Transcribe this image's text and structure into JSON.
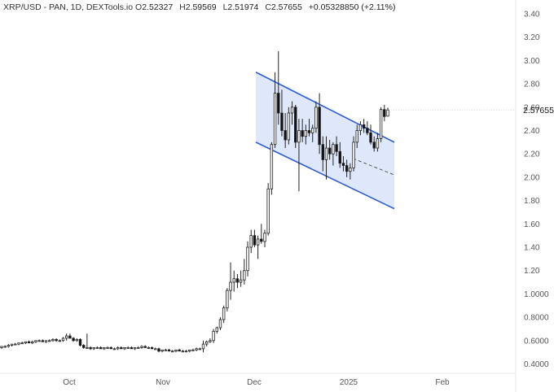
{
  "legend": {
    "title": "XRP/USD - PAN, 1D, DEXTools.io",
    "open_label": "O",
    "open": "2.52327",
    "high_label": "H",
    "high": "2.59569",
    "low_label": "L",
    "low": "2.51974",
    "close_label": "C",
    "close": "2.57655",
    "change": "+0.05328850 (+2.11%)"
  },
  "last_price_label": "2.57655",
  "colors": {
    "channel_fill": "#dbe6fb",
    "channel_line": "#2f5fd0",
    "candle_body_up": "#ffffff",
    "candle_body_down": "#111111",
    "wick": "#222222",
    "axis_text": "#555555",
    "grid": "#f0f0f0"
  },
  "chart_data": {
    "type": "candlestick",
    "title": "XRP/USD - PAN, 1D, DEXTools.io",
    "y_axis": {
      "ticks": [
        "3.40",
        "3.20",
        "3.00",
        "2.80",
        "2.60",
        "2.40",
        "2.20",
        "2.00",
        "1.80",
        "1.60",
        "1.40",
        "1.20",
        "1.0000",
        "0.8000",
        "0.6000",
        "0.4000"
      ],
      "range": [
        0.38,
        3.44
      ]
    },
    "x_axis": {
      "tick_labels": [
        "Oct",
        "Nov",
        "Dec",
        "2025",
        "Feb"
      ]
    },
    "grid": false,
    "channel": {
      "upper_start": [
        "2024-12-02",
        2.9
      ],
      "upper_end": [
        "2025-01-18",
        2.3
      ],
      "lower_start": [
        "2024-12-02",
        2.3
      ],
      "lower_end": [
        "2025-01-18",
        1.73
      ],
      "midline_start": [
        "2025-01-04",
        2.16
      ],
      "midline_end": [
        "2025-01-18",
        2.02
      ]
    },
    "candles": [
      [
        0.54,
        0.55,
        0.53,
        0.55
      ],
      [
        0.55,
        0.56,
        0.54,
        0.55
      ],
      [
        0.55,
        0.57,
        0.54,
        0.56
      ],
      [
        0.56,
        0.57,
        0.55,
        0.57
      ],
      [
        0.57,
        0.58,
        0.56,
        0.57
      ],
      [
        0.57,
        0.58,
        0.56,
        0.58
      ],
      [
        0.58,
        0.59,
        0.57,
        0.58
      ],
      [
        0.58,
        0.59,
        0.57,
        0.59
      ],
      [
        0.59,
        0.6,
        0.58,
        0.58
      ],
      [
        0.58,
        0.6,
        0.57,
        0.59
      ],
      [
        0.59,
        0.6,
        0.58,
        0.6
      ],
      [
        0.6,
        0.61,
        0.59,
        0.6
      ],
      [
        0.6,
        0.61,
        0.59,
        0.59
      ],
      [
        0.59,
        0.6,
        0.58,
        0.6
      ],
      [
        0.6,
        0.61,
        0.59,
        0.6
      ],
      [
        0.6,
        0.62,
        0.59,
        0.61
      ],
      [
        0.61,
        0.62,
        0.59,
        0.6
      ],
      [
        0.6,
        0.61,
        0.59,
        0.6
      ],
      [
        0.6,
        0.63,
        0.59,
        0.62
      ],
      [
        0.62,
        0.66,
        0.6,
        0.64
      ],
      [
        0.64,
        0.66,
        0.62,
        0.62
      ],
      [
        0.62,
        0.63,
        0.59,
        0.6
      ],
      [
        0.6,
        0.62,
        0.59,
        0.61
      ],
      [
        0.61,
        0.62,
        0.55,
        0.56
      ],
      [
        0.56,
        0.57,
        0.53,
        0.54
      ],
      [
        0.54,
        0.66,
        0.53,
        0.54
      ],
      [
        0.54,
        0.55,
        0.52,
        0.53
      ],
      [
        0.53,
        0.54,
        0.52,
        0.54
      ],
      [
        0.54,
        0.55,
        0.53,
        0.54
      ],
      [
        0.54,
        0.55,
        0.53,
        0.53
      ],
      [
        0.53,
        0.54,
        0.52,
        0.54
      ],
      [
        0.54,
        0.55,
        0.53,
        0.54
      ],
      [
        0.54,
        0.55,
        0.53,
        0.53
      ],
      [
        0.53,
        0.54,
        0.52,
        0.53
      ],
      [
        0.53,
        0.55,
        0.52,
        0.54
      ],
      [
        0.54,
        0.55,
        0.53,
        0.53
      ],
      [
        0.53,
        0.54,
        0.52,
        0.54
      ],
      [
        0.54,
        0.55,
        0.53,
        0.54
      ],
      [
        0.54,
        0.55,
        0.53,
        0.53
      ],
      [
        0.53,
        0.54,
        0.52,
        0.54
      ],
      [
        0.54,
        0.55,
        0.53,
        0.54
      ],
      [
        0.54,
        0.56,
        0.53,
        0.55
      ],
      [
        0.55,
        0.56,
        0.54,
        0.54
      ],
      [
        0.54,
        0.55,
        0.53,
        0.54
      ],
      [
        0.54,
        0.55,
        0.53,
        0.53
      ],
      [
        0.53,
        0.54,
        0.52,
        0.53
      ],
      [
        0.53,
        0.54,
        0.5,
        0.51
      ],
      [
        0.51,
        0.52,
        0.5,
        0.52
      ],
      [
        0.52,
        0.53,
        0.51,
        0.52
      ],
      [
        0.52,
        0.53,
        0.51,
        0.51
      ],
      [
        0.51,
        0.52,
        0.5,
        0.51
      ],
      [
        0.51,
        0.52,
        0.5,
        0.52
      ],
      [
        0.52,
        0.53,
        0.51,
        0.51
      ],
      [
        0.51,
        0.52,
        0.5,
        0.51
      ],
      [
        0.51,
        0.52,
        0.5,
        0.51
      ],
      [
        0.51,
        0.52,
        0.5,
        0.52
      ],
      [
        0.52,
        0.53,
        0.51,
        0.52
      ],
      [
        0.52,
        0.54,
        0.51,
        0.53
      ],
      [
        0.53,
        0.54,
        0.52,
        0.53
      ],
      [
        0.53,
        0.6,
        0.5,
        0.57
      ],
      [
        0.57,
        0.6,
        0.55,
        0.59
      ],
      [
        0.59,
        0.62,
        0.58,
        0.6
      ],
      [
        0.6,
        0.7,
        0.58,
        0.68
      ],
      [
        0.68,
        0.72,
        0.66,
        0.71
      ],
      [
        0.71,
        0.8,
        0.69,
        0.78
      ],
      [
        0.78,
        0.9,
        0.75,
        0.88
      ],
      [
        0.88,
        1.05,
        0.85,
        1.03
      ],
      [
        1.03,
        1.27,
        0.95,
        1.1
      ],
      [
        1.1,
        1.2,
        1.02,
        1.13
      ],
      [
        1.13,
        1.17,
        1.05,
        1.1
      ],
      [
        1.1,
        1.2,
        1.06,
        1.12
      ],
      [
        1.12,
        1.3,
        1.08,
        1.2
      ],
      [
        1.2,
        1.45,
        1.15,
        1.4
      ],
      [
        1.4,
        1.55,
        1.35,
        1.5
      ],
      [
        1.5,
        1.55,
        1.4,
        1.42
      ],
      [
        1.42,
        1.5,
        1.3,
        1.47
      ],
      [
        1.47,
        1.6,
        1.43,
        1.45
      ],
      [
        1.45,
        1.55,
        1.4,
        1.52
      ],
      [
        1.52,
        1.95,
        1.5,
        1.9
      ],
      [
        1.9,
        2.3,
        1.85,
        2.28
      ],
      [
        2.28,
        2.9,
        2.25,
        2.72
      ],
      [
        2.72,
        3.08,
        2.45,
        2.55
      ],
      [
        2.55,
        2.75,
        2.35,
        2.4
      ],
      [
        2.4,
        2.55,
        2.25,
        2.32
      ],
      [
        2.32,
        2.6,
        2.28,
        2.55
      ],
      [
        2.55,
        2.65,
        2.45,
        2.6
      ],
      [
        2.6,
        2.62,
        2.25,
        2.3
      ],
      [
        2.3,
        2.5,
        1.88,
        2.4
      ],
      [
        2.4,
        2.5,
        2.3,
        2.35
      ],
      [
        2.35,
        2.45,
        2.28,
        2.4
      ],
      [
        2.4,
        2.5,
        2.35,
        2.38
      ],
      [
        2.38,
        2.45,
        2.3,
        2.42
      ],
      [
        2.42,
        2.65,
        2.38,
        2.6
      ],
      [
        2.6,
        2.72,
        2.2,
        2.28
      ],
      [
        2.28,
        2.35,
        2.05,
        2.15
      ],
      [
        2.15,
        2.35,
        1.98,
        2.25
      ],
      [
        2.25,
        2.32,
        2.15,
        2.2
      ],
      [
        2.2,
        2.3,
        2.1,
        2.28
      ],
      [
        2.28,
        2.35,
        2.18,
        2.22
      ],
      [
        2.22,
        2.3,
        2.08,
        2.12
      ],
      [
        2.12,
        2.18,
        2.05,
        2.1
      ],
      [
        2.1,
        2.15,
        2.0,
        2.05
      ],
      [
        2.05,
        2.12,
        1.98,
        2.08
      ],
      [
        2.08,
        2.35,
        2.05,
        2.3
      ],
      [
        2.3,
        2.45,
        2.25,
        2.4
      ],
      [
        2.4,
        2.48,
        2.36,
        2.45
      ],
      [
        2.45,
        2.5,
        2.38,
        2.42
      ],
      [
        2.42,
        2.48,
        2.36,
        2.38
      ],
      [
        2.38,
        2.45,
        2.28,
        2.3
      ],
      [
        2.3,
        2.35,
        2.22,
        2.25
      ],
      [
        2.25,
        2.38,
        2.22,
        2.33
      ],
      [
        2.33,
        2.6,
        2.3,
        2.58
      ],
      [
        2.58,
        2.62,
        2.48,
        2.52
      ],
      [
        2.52327,
        2.59569,
        2.51974,
        2.57655
      ]
    ]
  }
}
